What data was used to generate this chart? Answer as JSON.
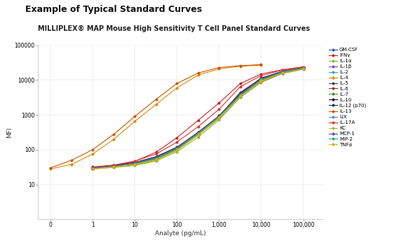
{
  "title_line1": "Example of Typical Standard Curves",
  "title_line2": "MILLIPLEX® MAP Mouse High Sensitivity T Cell Panel Standard Curves",
  "xlabel": "Analyte (pg/mL)",
  "ylabel": "MFI",
  "background_color": "#ffffff",
  "series": [
    {
      "label": "GM-CSF",
      "color": "#3355aa",
      "x": [
        1,
        3.2,
        10,
        32,
        100,
        320,
        1000,
        3200,
        10000,
        32000,
        100000
      ],
      "y": [
        30,
        33,
        38,
        55,
        110,
        320,
        900,
        4500,
        11000,
        17000,
        21000
      ]
    },
    {
      "label": "IFNγ",
      "color": "#cc2222",
      "x": [
        1,
        3.2,
        10,
        32,
        100,
        320,
        1000,
        3200,
        10000,
        32000,
        100000
      ],
      "y": [
        32,
        36,
        46,
        85,
        220,
        700,
        2200,
        8000,
        15000,
        20000,
        24000
      ]
    },
    {
      "label": "IL-1α",
      "color": "#88bb22",
      "x": [
        1,
        3.2,
        10,
        32,
        100,
        320,
        1000,
        3200,
        10000,
        32000,
        100000
      ],
      "y": [
        28,
        31,
        35,
        47,
        88,
        230,
        720,
        3200,
        8500,
        15500,
        20500
      ]
    },
    {
      "label": "IL-1β",
      "color": "#8844bb",
      "x": [
        1,
        3.2,
        10,
        32,
        100,
        320,
        1000,
        3200,
        10000,
        32000,
        100000
      ],
      "y": [
        29,
        32,
        37,
        52,
        98,
        265,
        800,
        3400,
        9200,
        15800,
        21000
      ]
    },
    {
      "label": "IL-2",
      "color": "#22aacc",
      "x": [
        1,
        3.2,
        10,
        32,
        100,
        320,
        1000,
        3200,
        10000,
        32000,
        100000
      ],
      "y": [
        30,
        33,
        39,
        56,
        108,
        300,
        880,
        4000,
        10500,
        17500,
        22500
      ]
    },
    {
      "label": "IL-4",
      "color": "#dd8800",
      "x": [
        0.1,
        0.32,
        1,
        3.2,
        10,
        32,
        100,
        320,
        1000,
        3200,
        10000
      ],
      "y": [
        28,
        38,
        75,
        200,
        650,
        2000,
        6000,
        14000,
        21000,
        25000,
        27000
      ]
    },
    {
      "label": "IL-5",
      "color": "#334455",
      "x": [
        1,
        3.2,
        10,
        32,
        100,
        320,
        1000,
        3200,
        10000,
        32000,
        100000
      ],
      "y": [
        29,
        33,
        38,
        53,
        102,
        275,
        830,
        3600,
        9800,
        16500,
        21500
      ]
    },
    {
      "label": "IL-6",
      "color": "#993322",
      "x": [
        1,
        3.2,
        10,
        32,
        100,
        320,
        1000,
        3200,
        10000,
        32000,
        100000
      ],
      "y": [
        30,
        34,
        41,
        60,
        115,
        310,
        930,
        4200,
        11500,
        18000,
        23000
      ]
    },
    {
      "label": "IL-7",
      "color": "#558833",
      "x": [
        1,
        3.2,
        10,
        32,
        100,
        320,
        1000,
        3200,
        10000,
        32000,
        100000
      ],
      "y": [
        29,
        33,
        39,
        55,
        106,
        292,
        865,
        3700,
        10200,
        17000,
        22000
      ]
    },
    {
      "label": "IL-10",
      "color": "#111133",
      "x": [
        1,
        3.2,
        10,
        32,
        100,
        320,
        1000,
        3200,
        10000,
        32000,
        100000
      ],
      "y": [
        30,
        35,
        43,
        63,
        118,
        315,
        940,
        4100,
        11200,
        18000,
        23000
      ]
    },
    {
      "label": "IL-12 (p70)",
      "color": "#223344",
      "x": [
        1,
        3.2,
        10,
        32,
        100,
        320,
        1000,
        3200,
        10000,
        32000,
        100000
      ],
      "y": [
        29,
        33,
        40,
        57,
        110,
        298,
        892,
        3800,
        10400,
        17200,
        22300
      ]
    },
    {
      "label": "IL-13",
      "color": "#cc5500",
      "x": [
        0.1,
        0.32,
        1,
        3.2,
        10,
        32,
        100,
        320,
        1000,
        3200,
        10000
      ],
      "y": [
        30,
        50,
        100,
        280,
        900,
        2800,
        8000,
        16000,
        23000,
        26000,
        28000
      ]
    },
    {
      "label": "LIX",
      "color": "#5588cc",
      "x": [
        1,
        3.2,
        10,
        32,
        100,
        320,
        1000,
        3200,
        10000,
        32000,
        100000
      ],
      "y": [
        29,
        32,
        38,
        53,
        100,
        280,
        845,
        3500,
        9700,
        16200,
        21300
      ]
    },
    {
      "label": "IL-17A",
      "color": "#dd3333",
      "x": [
        1,
        3.2,
        10,
        32,
        100,
        320,
        1000,
        3200,
        10000,
        32000,
        100000
      ],
      "y": [
        31,
        36,
        47,
        75,
        165,
        460,
        1450,
        6500,
        13500,
        19500,
        24000
      ]
    },
    {
      "label": "KC",
      "color": "#aabb22",
      "x": [
        1,
        3.2,
        10,
        32,
        100,
        320,
        1000,
        3200,
        10000,
        32000,
        100000
      ],
      "y": [
        28,
        31,
        36,
        50,
        96,
        265,
        800,
        3400,
        9300,
        16000,
        21000
      ]
    },
    {
      "label": "MCP-1",
      "color": "#774499",
      "x": [
        1,
        3.2,
        10,
        32,
        100,
        320,
        1000,
        3200,
        10000,
        32000,
        100000
      ],
      "y": [
        30,
        34,
        42,
        61,
        114,
        308,
        915,
        3950,
        10900,
        17800,
        22800
      ]
    },
    {
      "label": "MIP-2",
      "color": "#22aa88",
      "x": [
        1,
        3.2,
        10,
        32,
        100,
        320,
        1000,
        3200,
        10000,
        32000,
        100000
      ],
      "y": [
        29,
        33,
        40,
        57,
        109,
        300,
        895,
        3820,
        10500,
        17300,
        22400
      ]
    },
    {
      "label": "TNFα",
      "color": "#ddaa22",
      "x": [
        1,
        3.2,
        10,
        32,
        100,
        320,
        1000,
        3200,
        10000,
        32000,
        100000
      ],
      "y": [
        28,
        32,
        38,
        52,
        99,
        272,
        825,
        3450,
        9650,
        16100,
        21100
      ]
    }
  ]
}
